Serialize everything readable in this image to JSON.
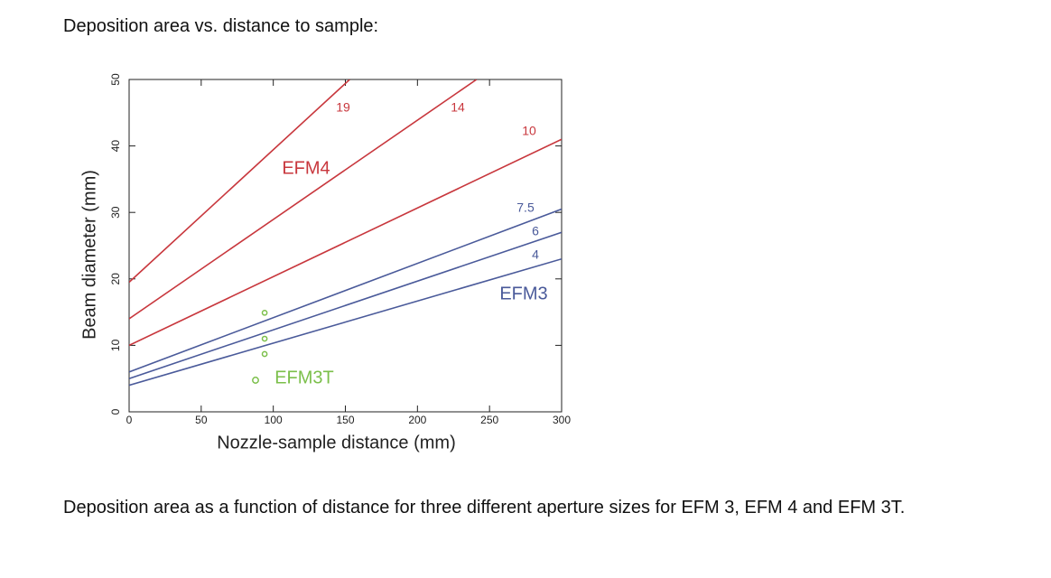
{
  "heading": "Deposition area vs. distance to sample:",
  "caption": "Deposition area as a function of distance for three different aperture sizes for EFM 3, EFM 4 and EFM 3T.",
  "chart_data": {
    "type": "line",
    "x_label": "Nozzle-sample distance (mm)",
    "y_label": "Beam diameter (mm)",
    "xlim": [
      0,
      300
    ],
    "ylim": [
      0,
      50
    ],
    "xticks": [
      0,
      50,
      100,
      150,
      200,
      250,
      300
    ],
    "yticks": [
      0,
      10,
      20,
      30,
      40,
      50
    ],
    "series": [
      {
        "name": "19",
        "color": "#c8373d",
        "x": [
          0,
          153
        ],
        "values": [
          19.5,
          50
        ]
      },
      {
        "name": "14",
        "color": "#c8373d",
        "x": [
          0,
          241
        ],
        "values": [
          14,
          50
        ]
      },
      {
        "name": "10",
        "color": "#c8373d",
        "x": [
          0,
          300
        ],
        "values": [
          10,
          41
        ]
      },
      {
        "name": "7.5",
        "color": "#4a5a9a",
        "x": [
          0,
          300
        ],
        "values": [
          6,
          30.5
        ]
      },
      {
        "name": "6",
        "color": "#4a5a9a",
        "x": [
          0,
          300
        ],
        "values": [
          5,
          27
        ]
      },
      {
        "name": "4",
        "color": "#4a5a9a",
        "x": [
          0,
          300
        ],
        "values": [
          4,
          23
        ]
      },
      {
        "name": "EFM3T",
        "type": "scatter",
        "color": "#7bbf4a",
        "x": [
          94,
          94,
          94
        ],
        "values": [
          14.9,
          11,
          8.7
        ]
      }
    ],
    "annotations": [
      {
        "text": "EFM4",
        "color": "#c8373d"
      },
      {
        "text": "EFM3",
        "color": "#4a5a9a"
      }
    ]
  }
}
